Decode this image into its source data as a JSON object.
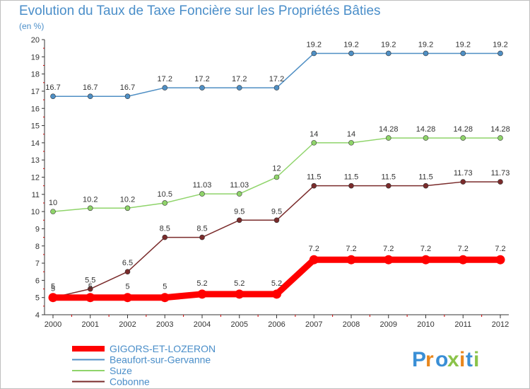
{
  "chart_data": {
    "type": "line",
    "title": "Evolution du Taux de Taxe Foncière sur les Propriétés Bâties",
    "unit_label": "(en %)",
    "x": [
      "2000",
      "2001",
      "2002",
      "2003",
      "2004",
      "2005",
      "2006",
      "2007",
      "2008",
      "2009",
      "2010",
      "2011",
      "2012"
    ],
    "ylim": [
      4,
      20
    ],
    "yticks": [
      4,
      5,
      6,
      7,
      8,
      9,
      10,
      11,
      12,
      13,
      14,
      15,
      16,
      17,
      18,
      19,
      20
    ],
    "grid": false,
    "legend_position": "bottom-left",
    "series": [
      {
        "name": "GIGORS-ET-LOZERON",
        "color": "#ff0000",
        "emphasis": true,
        "values": [
          5,
          5,
          5,
          5,
          5.2,
          5.2,
          5.2,
          7.2,
          7.2,
          7.2,
          7.2,
          7.2,
          7.2
        ],
        "labels": [
          "5",
          "5",
          "5",
          "5",
          "5.2",
          "5.2",
          "5.2",
          "7.2",
          "7.2",
          "7.2",
          "7.2",
          "7.2",
          "7.2"
        ]
      },
      {
        "name": "Beaufort-sur-Gervanne",
        "color": "#4f8fc4",
        "emphasis": false,
        "values": [
          16.7,
          16.7,
          16.7,
          17.2,
          17.2,
          17.2,
          17.2,
          19.2,
          19.2,
          19.2,
          19.2,
          19.2,
          19.2
        ],
        "labels": [
          "16.7",
          "16.7",
          "16.7",
          "17.2",
          "17.2",
          "17.2",
          "17.2",
          "19.2",
          "19.2",
          "19.2",
          "19.2",
          "19.2",
          "19.2"
        ]
      },
      {
        "name": "Suze",
        "color": "#8fd46a",
        "emphasis": false,
        "values": [
          10,
          10.2,
          10.2,
          10.5,
          11.03,
          11.03,
          12,
          14,
          14,
          14.28,
          14.28,
          14.28,
          14.28
        ],
        "labels": [
          "10",
          "10.2",
          "10.2",
          "10.5",
          "11.03",
          "11.03",
          "12",
          "14",
          "14",
          "14.28",
          "14.28",
          "14.28",
          "14.28"
        ]
      },
      {
        "name": "Cobonne",
        "color": "#7a2b2b",
        "emphasis": false,
        "values": [
          5,
          5.5,
          6.5,
          8.5,
          8.5,
          9.5,
          9.5,
          11.5,
          11.5,
          11.5,
          11.5,
          11.73,
          11.73
        ],
        "labels": [
          "5",
          "5.5",
          "6.5",
          "8.5",
          "8.5",
          "9.5",
          "9.5",
          "11.5",
          "11.5",
          "11.5",
          "11.5",
          "11.73",
          "11.73"
        ]
      }
    ]
  },
  "logo": {
    "text": "Proxiti",
    "colors": [
      "#3a8fd6",
      "#e8871e",
      "#3a8fd6",
      "#8bc34a",
      "#e8871e",
      "#3a8fd6",
      "#8bc34a"
    ]
  }
}
